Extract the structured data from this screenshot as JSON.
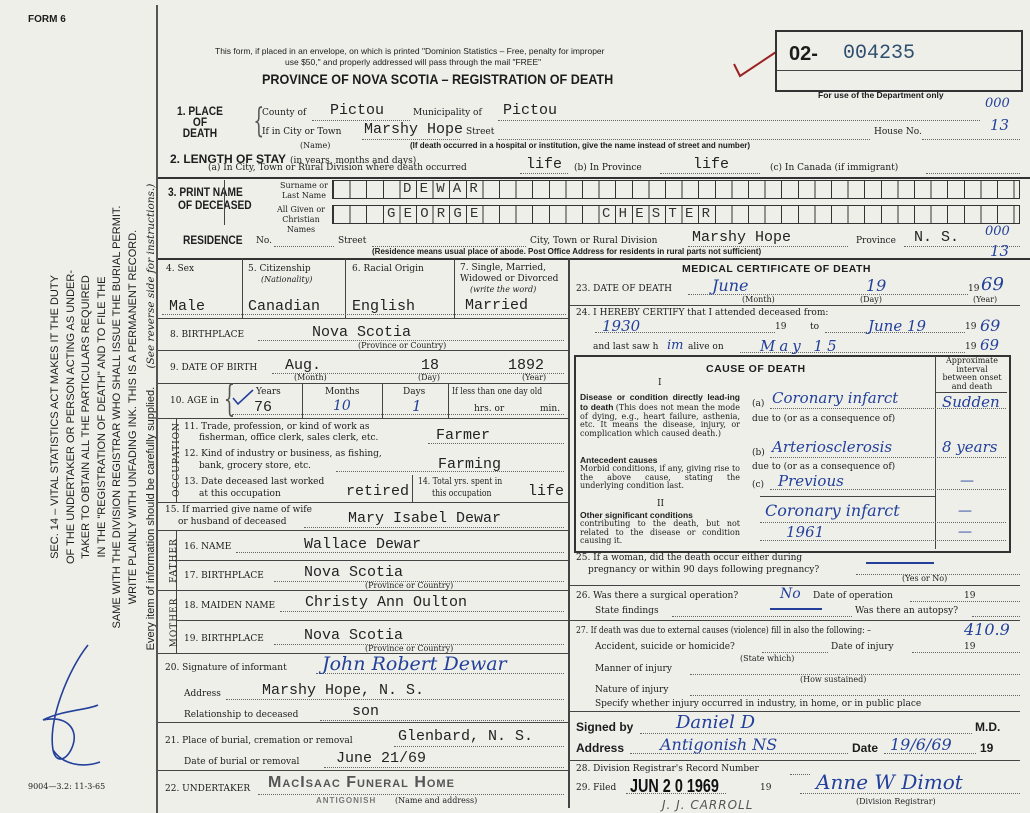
{
  "form_number": "FORM 6",
  "form_code": "9004—3.2: 11-3-65",
  "side_notice": {
    "lines": [
      "SEC. 14 – VITAL STATISTICS ACT MAKES IT THE DUTY",
      "OF THE UNDERTAKER OR PERSON ACTING AS UNDER-",
      "TAKER TO OBTAIN ALL THE PARTICULARS REQUIRED",
      "IN THE \"REGISTRATION OF DEATH\" AND TO FILE THE",
      "SAME WITH THE DIVISION REGISTRAR WHO SHALL ISSUE THE BURIAL PERMIT.",
      "WRITE PLAINLY WITH UNFADING INK. THIS IS A PERMANENT RECORD."
    ],
    "footer": "Every item of information should be carefully supplied.",
    "reverse": "(See reverse side for instructions.)"
  },
  "header": {
    "notice_1": "This form, if placed in an envelope, on which is printed \"Dominion Statistics – Free, penalty for improper",
    "notice_2": "use $50,\" and properly addressed will pass through the mail \"FREE\"",
    "title": "PROVINCE OF NOVA SCOTIA – REGISTRATION OF DEATH",
    "reg_prefix": "02-",
    "reg_number": "004235",
    "dept_only": "For use of the Department only"
  },
  "place_of_death": {
    "label": "1. PLACE OF DEATH",
    "county_label": "County of",
    "county": "Pictou",
    "municipality_label": "Municipality of",
    "municipality": "Pictou",
    "city_label": "If in City or Town",
    "city": "Marshy Hope",
    "city_note": "(Name)",
    "street_label": "Street",
    "house_label": "House No.",
    "street_note": "(If death occurred in a hospital or institution, give the name instead of street and number)",
    "code_1": "000",
    "code_2": "13"
  },
  "length_of_stay": {
    "label": "2. LENGTH OF STAY",
    "label_note": "(in years, months and days)",
    "a_label": "(a) In City, Town or Rural Division where death occurred",
    "a": "life",
    "b_label": "(b) In Province",
    "b": "life",
    "c_label": "(c) In Canada (if immigrant)"
  },
  "name": {
    "label_1": "3. PRINT NAME",
    "label_2": "OF DECEASED",
    "surname_label": "Surname or Last Name",
    "given_label": "All Given or Christian Names",
    "surname": "DEWAR",
    "given_names": [
      "GEORGE",
      "CHESTER"
    ]
  },
  "residence": {
    "label": "RESIDENCE",
    "no_label": "No.",
    "street_label": "Street",
    "city_label": "City, Town or Rural Division",
    "city": "Marshy Hope",
    "province_label": "Province",
    "province": "N. S.",
    "note": "(Residence means usual place of abode. Post Office Address for residents in rural parts not sufficient)",
    "code_1": "000",
    "code_2": "13"
  },
  "personal": {
    "sex_label": "4. Sex",
    "sex": "Male",
    "citizenship_label": "5. Citizenship",
    "citizenship_note": "(Nationality)",
    "citizenship": "Canadian",
    "racial_label": "6. Racial Origin",
    "racial": "English",
    "marital_label_1": "7. Single, Married,",
    "marital_label_2": "Widowed or Divorced",
    "marital_label_3": "(write the word)",
    "marital": "Married",
    "birthplace_label": "8. BIRTHPLACE",
    "birthplace": "Nova Scotia",
    "province_note": "(Province or Country)",
    "dob_label": "9. DATE OF BIRTH",
    "dob_month": "Aug.",
    "dob_day": "18",
    "dob_year": "1892",
    "month_note": "(Month)",
    "day_note": "(Day)",
    "year_note": "(Year)",
    "age_label": "10. AGE in",
    "years_label": "Years",
    "years": "76",
    "months_label": "Months",
    "months": "10",
    "days_label": "Days",
    "days": "1",
    "less_label": "If less than one day old",
    "hrs_label": "hrs. or",
    "min_label": "min."
  },
  "occupation": {
    "side_label": "OCCUPATION",
    "trade_label_1": "11. Trade, profession, or kind of work as",
    "trade_label_2": "fisherman, office clerk, sales clerk, etc.",
    "trade": "Farmer",
    "industry_label_1": "12. Kind of industry or business, as fishing,",
    "industry_label_2": "bank, grocery store, etc.",
    "industry": "Farming",
    "last_worked_label_1": "13. Date deceased last worked",
    "last_worked_label_2": "at this occupation",
    "last_worked": "retired",
    "years_spent_label_1": "14. Total yrs. spent in",
    "years_spent_label_2": "this occupation",
    "years_spent": "life"
  },
  "spouse": {
    "label_1": "15. If married give name of wife",
    "label_2": "or husband of deceased",
    "name": "Mary Isabel Dewar"
  },
  "father": {
    "side_label": "FATHER",
    "name_label": "16. NAME",
    "name": "Wallace Dewar",
    "birthplace_label": "17. BIRTHPLACE",
    "birthplace": "Nova Scotia"
  },
  "mother": {
    "side_label": "MOTHER",
    "maiden_label": "18. MAIDEN NAME",
    "maiden_name": "Christy Ann Oulton",
    "birthplace_label": "19. BIRTHPLACE",
    "birthplace": "Nova Scotia"
  },
  "informant": {
    "signature_label": "20. Signature of informant",
    "signature": "John Robert Dewar",
    "address_label": "Address",
    "address": "Marshy Hope, N. S.",
    "relationship_label": "Relationship to deceased",
    "relationship": "son"
  },
  "burial": {
    "place_label": "21. Place of burial, cremation or removal",
    "place": "Glenbard, N. S.",
    "date_label": "Date of burial or removal",
    "date": "June 21/69"
  },
  "undertaker": {
    "label": "22. UNDERTAKER",
    "stamp": "MacIsaac Funeral Home",
    "stamp_2": "ANTIGONISH",
    "note": "(Name and address)"
  },
  "medical": {
    "title": "MEDICAL CERTIFICATE OF DEATH",
    "dod_label": "23. DATE OF DEATH",
    "dod_month": "June",
    "dod_day": "19",
    "dod_year": "69",
    "century": "19",
    "certify_label": "24. I HEREBY CERTIFY that I attended deceased from:",
    "from": "1930",
    "to_label": "to",
    "to": "June 19",
    "to_year": "69",
    "last_saw_label": "and last saw h",
    "last_saw_pronoun": "im",
    "alive_label": "alive on",
    "last_saw": "May 15",
    "last_saw_year": "69",
    "cause": {
      "title": "CAUSE OF DEATH",
      "interval_label": "Approximate interval between onset and death",
      "part_1": "I",
      "part_2": "II",
      "direct_heading": "Disease or condition directly lead-ing to death",
      "direct_note": "(This does not mean the mode of dying, e.g., heart failure, asthenia, etc. It means the disease, injury, or complication which caused death.)",
      "antecedent_heading": "Antecedent causes",
      "antecedent_note": "Morbid conditions, if any, giving rise to the above cause, stating the underlying condition last.",
      "other_heading": "Other significant conditions",
      "other_note": "contributing to the death, but not related to the disease or condition causing it.",
      "due_to": "due to (or as a consequence of)",
      "a_label": "(a)",
      "b_label": "(b)",
      "c_label": "(c)",
      "a": "Coronary infarct",
      "a_interval": "Sudden",
      "b": "Arteriosclerosis",
      "b_interval": "8 years",
      "c": "Previous",
      "c_interval": "—",
      "other_1": "Coronary infarct",
      "other_1_interval": "—",
      "other_2": "1961",
      "other_2_interval": "—"
    },
    "pregnancy_label_1": "25. If a woman, did the death occur either during",
    "pregnancy_label_2": "pregnancy or within 90 days following pregnancy?",
    "yes_no_note": "(Yes or No)",
    "operation_label": "26. Was there a surgical operation?",
    "operation": "No",
    "operation_date_label": "Date of operation",
    "findings_label": "State findings",
    "autopsy_label": "Was there an autopsy?",
    "external_label": "27. If death was due to external causes (violence) fill in also the following: –",
    "code": "410.9",
    "accident_label": "Accident, suicide or homicide?",
    "state_which": "(State which)",
    "injury_date_label": "Date of injury",
    "manner_label": "Manner of injury",
    "how_sustained": "(How sustained)",
    "nature_label": "Nature of injury",
    "specify_label": "Specify whether injury occurred in industry, in home, or in public place",
    "signed_label": "Signed by",
    "signed": "Daniel D",
    "md_label": "M.D.",
    "address_label": "Address",
    "address": "Antigonish NS",
    "date_label": "Date",
    "date": "19/6/69"
  },
  "registrar": {
    "record_label": "28. Division Registrar's Record Number",
    "filed_label": "29. Filed",
    "filed_stamp": "JUN 2 0 1969",
    "filed_by": "J. J. CARROLL",
    "signature": "Anne W Dimot",
    "registrar_note": "(Division Registrar)"
  },
  "colors": {
    "ink_blue": "#23409a",
    "check_red": "#9a2222",
    "paper": "#efefea"
  }
}
